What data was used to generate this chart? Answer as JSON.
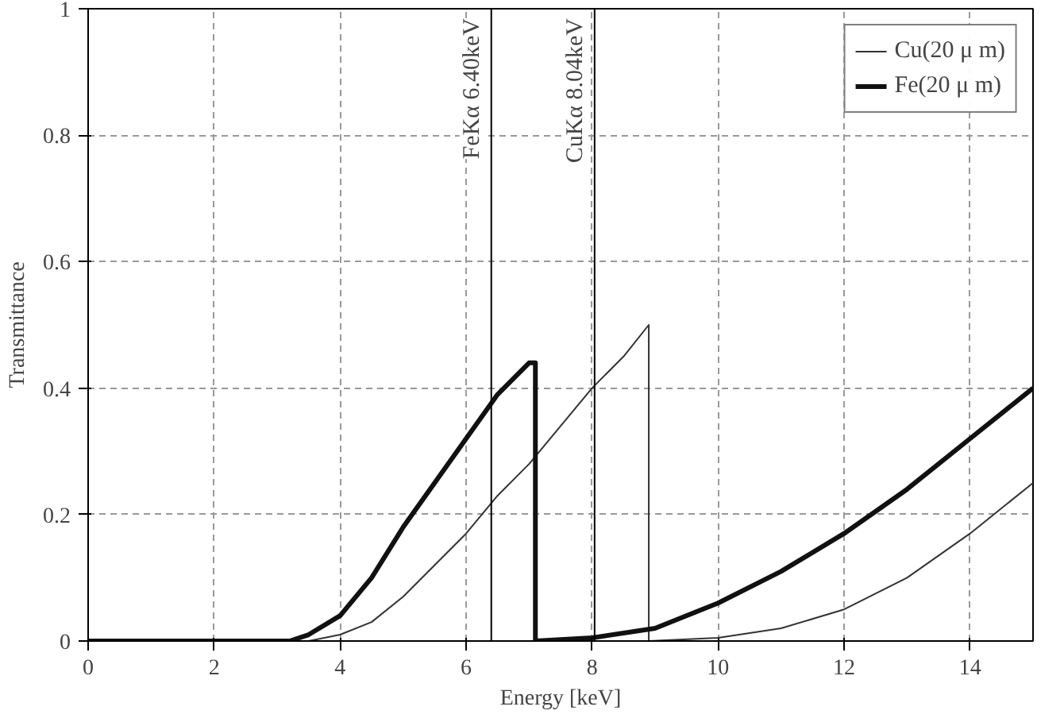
{
  "chart_data": {
    "type": "line",
    "xlabel": "Energy [keV]",
    "ylabel": "Transmittance",
    "xlim": [
      0,
      15
    ],
    "ylim": [
      0,
      1
    ],
    "xticks": [
      0,
      2,
      4,
      6,
      8,
      10,
      12,
      14
    ],
    "yticks": [
      0,
      0.2,
      0.4,
      0.6,
      0.8,
      1
    ],
    "grid": true,
    "legend": "top right",
    "marker": "none",
    "line_style": "solid",
    "series": [
      {
        "name": "Cu(20 μ m)",
        "color": "#333333",
        "x": [
          0,
          3.5,
          4,
          4.5,
          5,
          5.5,
          6,
          6.5,
          7,
          7.5,
          8,
          8.5,
          8.9,
          8.9,
          10,
          11,
          12,
          13,
          14,
          15
        ],
        "values": [
          0,
          0,
          0.01,
          0.03,
          0.07,
          0.12,
          0.17,
          0.23,
          0.28,
          0.34,
          0.4,
          0.45,
          0.5,
          0,
          0.005,
          0.02,
          0.05,
          0.1,
          0.17,
          0.25
        ]
      },
      {
        "name": "Fe(20 μ m)",
        "color": "#111111",
        "x": [
          0,
          3.2,
          3.5,
          4,
          4.5,
          5,
          5.5,
          6,
          6.5,
          7,
          7.1,
          7.1,
          8,
          9,
          10,
          11,
          12,
          13,
          14,
          15
        ],
        "values": [
          0,
          0,
          0.01,
          0.04,
          0.1,
          0.18,
          0.25,
          0.32,
          0.39,
          0.44,
          0.44,
          0,
          0.005,
          0.02,
          0.06,
          0.11,
          0.17,
          0.24,
          0.32,
          0.4
        ]
      }
    ],
    "ref_lines": [
      {
        "axis": "x",
        "value": 6.4,
        "label": "FeKα 6.40keV"
      },
      {
        "axis": "x",
        "value": 8.04,
        "label": "CuKα 8.04keV"
      }
    ]
  }
}
